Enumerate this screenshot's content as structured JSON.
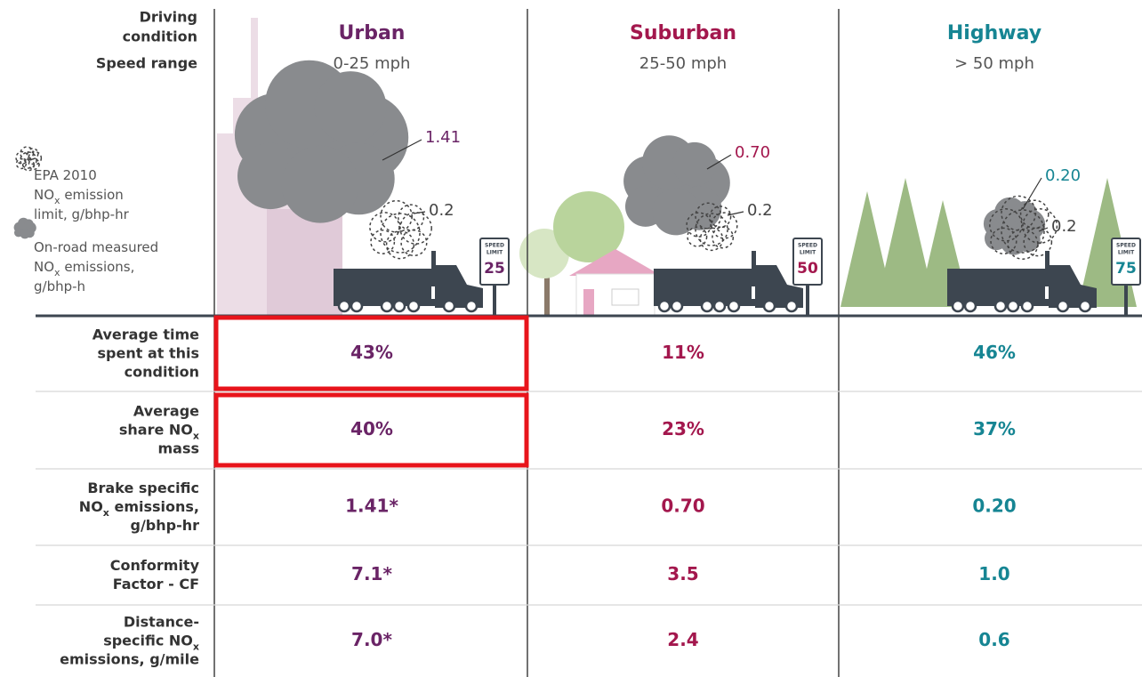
{
  "header_labels": [
    "Driving",
    "condition",
    "Speed range"
  ],
  "columns": [
    {
      "name": "Urban",
      "speed": "0-25 mph",
      "measured": "1.41",
      "limit": "0.2",
      "sign_text": [
        "SPEED",
        "LIMIT"
      ],
      "sign_value": "25"
    },
    {
      "name": "Suburban",
      "speed": "25-50 mph",
      "measured": "0.70",
      "limit": "0.2",
      "sign_text": [
        "SPEED",
        "LIMIT"
      ],
      "sign_value": "50"
    },
    {
      "name": "Highway",
      "speed": "> 50 mph",
      "measured": "0.20",
      "limit": "0.2",
      "sign_text": [
        "SPEED",
        "LIMIT"
      ],
      "sign_value": "75"
    }
  ],
  "legend": {
    "limit": [
      [
        "EPA 2010"
      ],
      [
        "NO",
        "x",
        " emission"
      ],
      [
        "limit, g/bhp-hr"
      ]
    ],
    "measured": [
      [
        "On-road measured"
      ],
      [
        "NO",
        "x",
        " emissions,"
      ],
      [
        "g/bhp-h"
      ]
    ]
  },
  "rows": [
    {
      "label": [
        [
          "Average time"
        ],
        [
          "spent at this"
        ],
        [
          "condition"
        ]
      ],
      "values": [
        "43%",
        "11%",
        "46%"
      ]
    },
    {
      "label": [
        [
          "Average"
        ],
        [
          "share NO",
          "x"
        ],
        [
          "mass"
        ]
      ],
      "values": [
        "40%",
        "23%",
        "37%"
      ]
    },
    {
      "label": [
        [
          "Brake specific"
        ],
        [
          "NO",
          "x",
          " emissions,"
        ],
        [
          "g/bhp-hr"
        ]
      ],
      "values": [
        "1.41*",
        "0.70",
        "0.20"
      ]
    },
    {
      "label": [
        [
          "Conformity"
        ],
        [
          "Factor - CF"
        ]
      ],
      "values": [
        "7.1*",
        "3.5",
        "1.0"
      ]
    },
    {
      "label": [
        [
          "Distance-"
        ],
        [
          "specific NO",
          "x"
        ],
        [
          "emissions, g/mile"
        ]
      ],
      "values": [
        "7.0*",
        "2.4",
        "0.6"
      ]
    }
  ]
}
